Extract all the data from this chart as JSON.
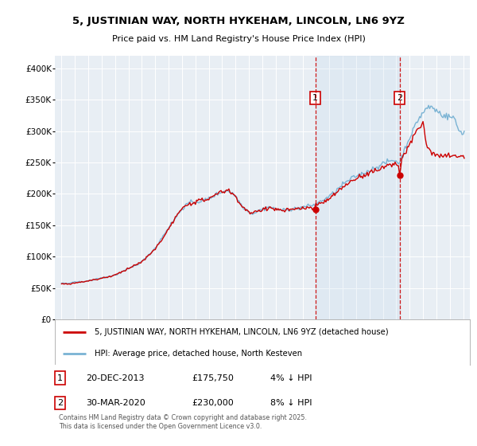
{
  "title": "5, JUSTINIAN WAY, NORTH HYKEHAM, LINCOLN, LN6 9YZ",
  "subtitle": "Price paid vs. HM Land Registry's House Price Index (HPI)",
  "legend_line1": "5, JUSTINIAN WAY, NORTH HYKEHAM, LINCOLN, LN6 9YZ (detached house)",
  "legend_line2": "HPI: Average price, detached house, North Kesteven",
  "footnote": "Contains HM Land Registry data © Crown copyright and database right 2025.\nThis data is licensed under the Open Government Licence v3.0.",
  "annotation1_label": "1",
  "annotation1_date": "20-DEC-2013",
  "annotation1_price": "£175,750",
  "annotation1_hpi": "4% ↓ HPI",
  "annotation2_label": "2",
  "annotation2_date": "30-MAR-2020",
  "annotation2_price": "£230,000",
  "annotation2_hpi": "8% ↓ HPI",
  "sale1_year": 2013.96,
  "sale1_value": 175750,
  "sale2_year": 2020.25,
  "sale2_value": 230000,
  "vline1_year": 2013.96,
  "vline2_year": 2020.25,
  "hpi_color": "#7ab3d4",
  "price_color": "#cc0000",
  "vline_color": "#cc0000",
  "plot_bg_color": "#e8eef4",
  "ylim": [
    0,
    420000
  ],
  "xlim": [
    1994.5,
    2025.5
  ],
  "yticks": [
    0,
    50000,
    100000,
    150000,
    200000,
    250000,
    300000,
    350000,
    400000
  ],
  "ytick_labels": [
    "£0",
    "£50K",
    "£100K",
    "£150K",
    "£200K",
    "£250K",
    "£300K",
    "£350K",
    "£400K"
  ],
  "xticks": [
    1995,
    1996,
    1997,
    1998,
    1999,
    2000,
    2001,
    2002,
    2003,
    2004,
    2005,
    2006,
    2007,
    2008,
    2009,
    2010,
    2011,
    2012,
    2013,
    2014,
    2015,
    2016,
    2017,
    2018,
    2019,
    2020,
    2021,
    2022,
    2023,
    2024,
    2025
  ]
}
